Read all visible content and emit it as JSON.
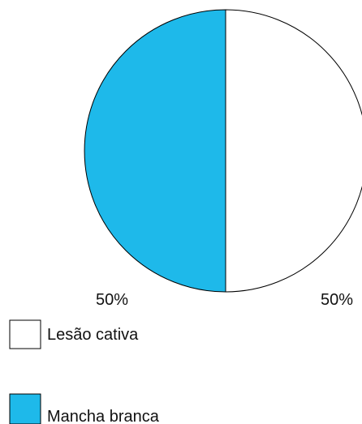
{
  "chart_data": {
    "type": "pie",
    "title": "",
    "slices": [
      {
        "label": "Lesão cativa",
        "value": 50,
        "display": "50%",
        "color": "#ffffff"
      },
      {
        "label": "Mancha branca",
        "value": 50,
        "display": "50%",
        "color": "#1eb9ea"
      }
    ],
    "legend": {
      "placement": "bottom-left",
      "entries": [
        "Lesão cativa",
        "Mancha branca"
      ]
    },
    "stroke_color": "#000000",
    "start_angle": "12 o'clock",
    "direction": "clockwise"
  }
}
